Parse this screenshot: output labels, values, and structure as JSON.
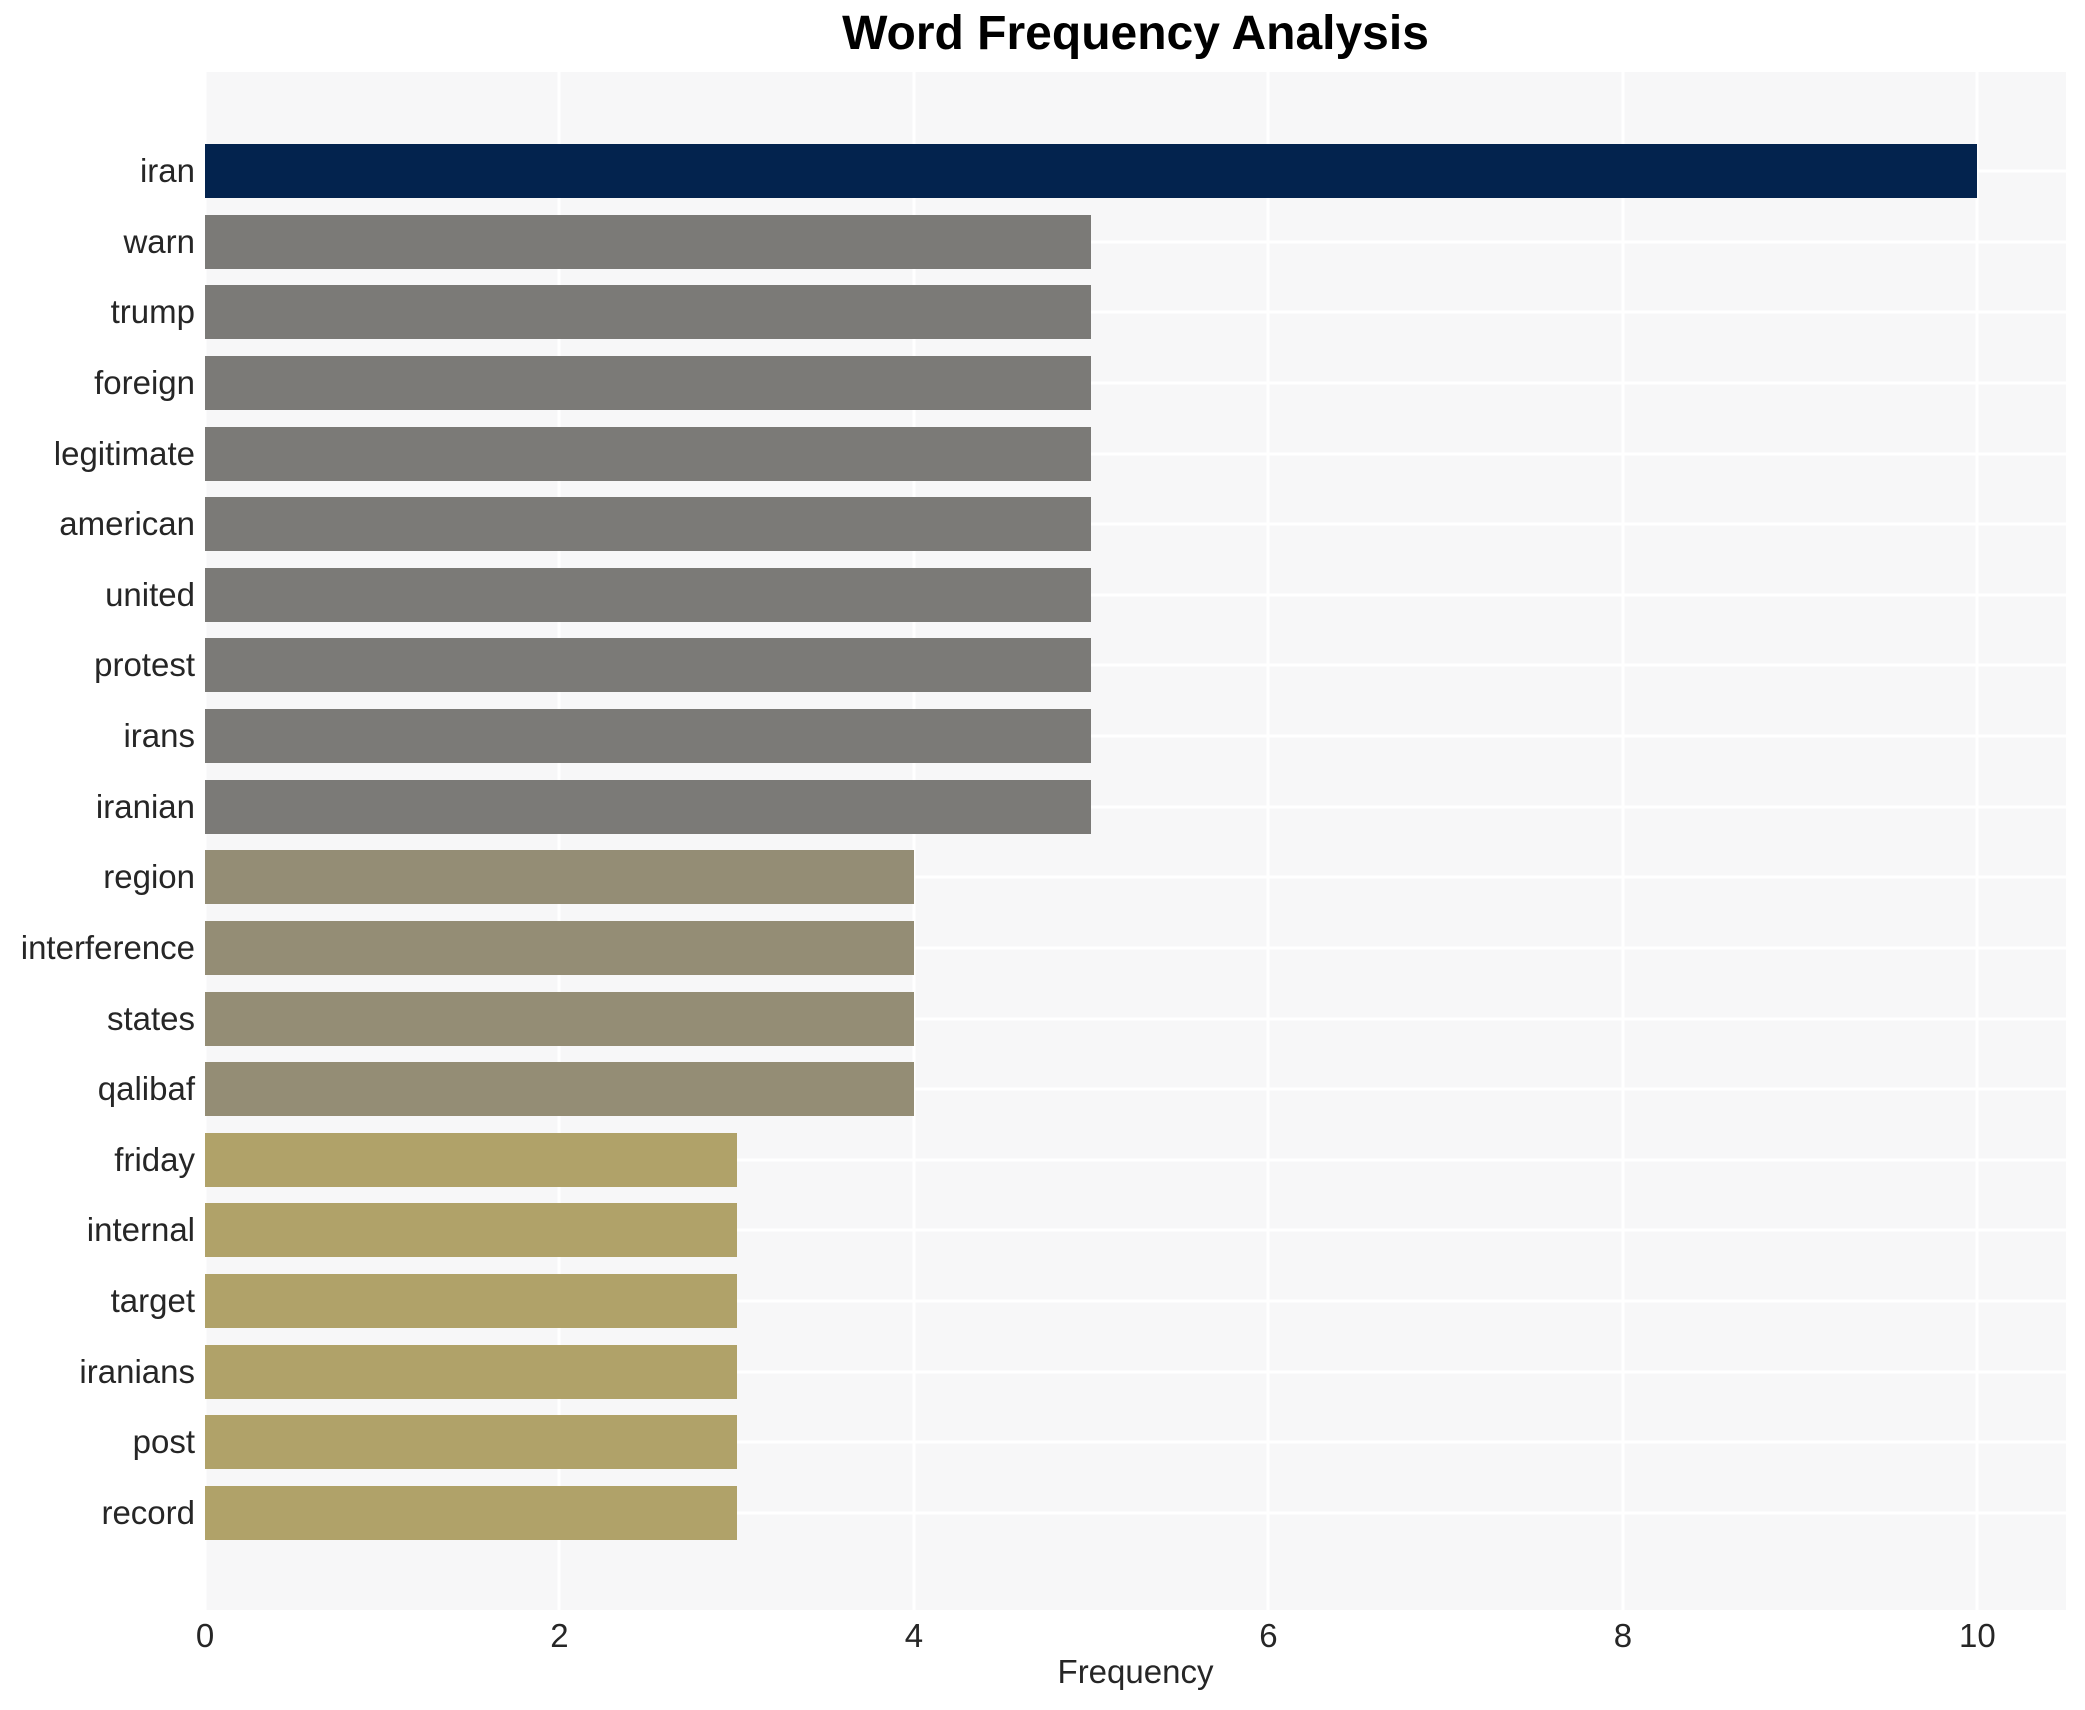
{
  "chart_data": {
    "type": "bar",
    "orientation": "horizontal",
    "title": "Word Frequency Analysis",
    "xlabel": "Frequency",
    "ylabel": "",
    "categories": [
      "iran",
      "warn",
      "trump",
      "foreign",
      "legitimate",
      "american",
      "united",
      "protest",
      "irans",
      "iranian",
      "region",
      "interference",
      "states",
      "qalibaf",
      "friday",
      "internal",
      "target",
      "iranians",
      "post",
      "record"
    ],
    "values": [
      10,
      5,
      5,
      5,
      5,
      5,
      5,
      5,
      5,
      5,
      4,
      4,
      4,
      4,
      3,
      3,
      3,
      3,
      3,
      3
    ],
    "bar_colors": [
      "#03234e",
      "#7b7a77",
      "#7b7a77",
      "#7b7a77",
      "#7b7a77",
      "#7b7a77",
      "#7b7a77",
      "#7b7a77",
      "#7b7a77",
      "#7b7a77",
      "#948d75",
      "#948d75",
      "#948d75",
      "#948d75",
      "#b0a269",
      "#b0a269",
      "#b0a269",
      "#b0a269",
      "#b0a269",
      "#b0a269"
    ],
    "xticks": [
      0,
      2,
      4,
      6,
      8,
      10
    ],
    "xlim": [
      0,
      10.5
    ],
    "grid": true,
    "legend": "none",
    "plot_bg": "#f7f7f8",
    "grid_color": "#ffffff",
    "text_color": "#262626"
  }
}
